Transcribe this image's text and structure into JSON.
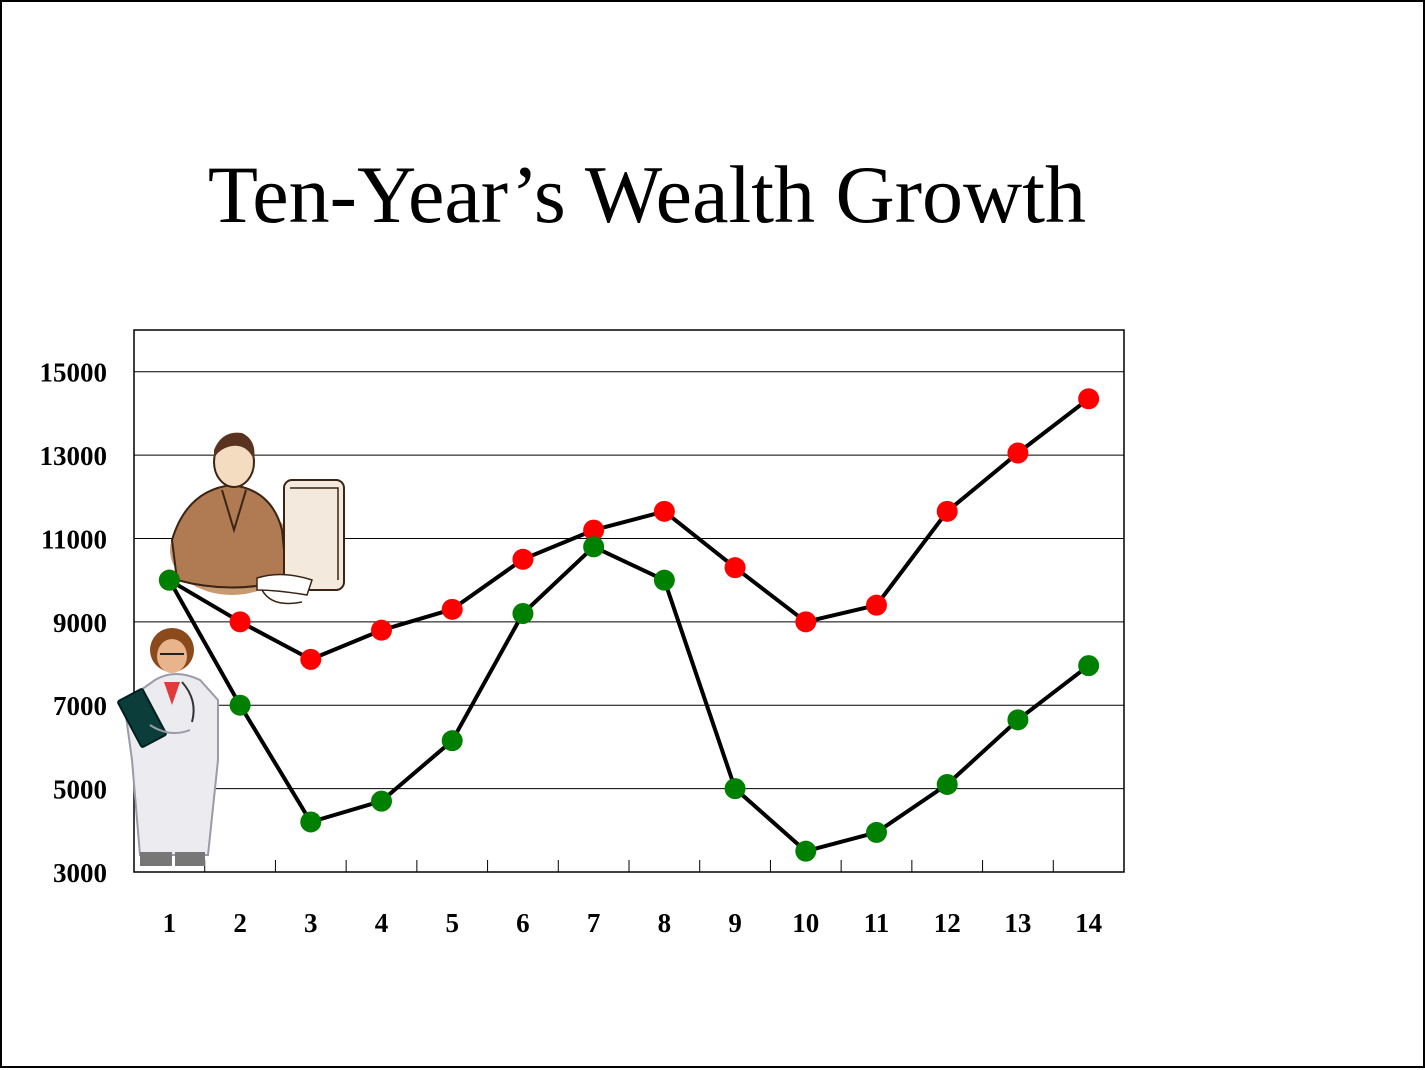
{
  "slide": {
    "title": "Ten-Year’s Wealth Growth"
  },
  "chart_data": {
    "type": "line",
    "title": "Ten-Year’s Wealth Growth",
    "xlabel": "",
    "ylabel": "",
    "categories": [
      "1",
      "2",
      "3",
      "4",
      "5",
      "6",
      "7",
      "8",
      "9",
      "10",
      "11",
      "12",
      "13",
      "14"
    ],
    "y_ticks": [
      "3000",
      "5000",
      "7000",
      "9000",
      "11000",
      "13000",
      "15000"
    ],
    "ylim": [
      3000,
      16000
    ],
    "grid": true,
    "legend": "none",
    "series": [
      {
        "color": "#ff0000",
        "icon": "office-worker-at-computer-icon",
        "values": [
          10000,
          9000,
          8100,
          8800,
          9300,
          10500,
          11200,
          11650,
          10300,
          9000,
          9400,
          11650,
          13050,
          14350
        ]
      },
      {
        "color": "#008000",
        "icon": "doctor-with-clipboard-icon",
        "values": [
          10000,
          7000,
          4200,
          4700,
          6150,
          9200,
          10800,
          10000,
          5000,
          3500,
          3950,
          5100,
          6650,
          7950
        ]
      }
    ],
    "line_color": "#000000"
  }
}
